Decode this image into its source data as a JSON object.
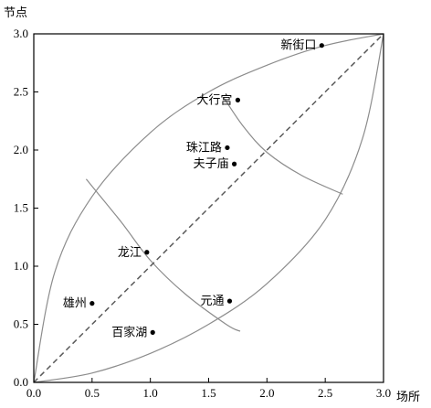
{
  "chart_data": {
    "type": "scatter",
    "xlabel": "场所",
    "ylabel": "节点",
    "xlim": [
      0,
      3
    ],
    "ylim": [
      0,
      3
    ],
    "xticks": [
      "0.0",
      "0.5",
      "1.0",
      "1.5",
      "2.0",
      "2.5",
      "3.0"
    ],
    "yticks": [
      "0.0",
      "0.5",
      "1.0",
      "1.5",
      "2.0",
      "2.5",
      "3.0"
    ],
    "diagonal_reference": true,
    "points": [
      {
        "label": "新街口",
        "x": 2.47,
        "y": 2.9
      },
      {
        "label": "大行宫",
        "x": 1.75,
        "y": 2.43
      },
      {
        "label": "珠江路",
        "x": 1.66,
        "y": 2.02
      },
      {
        "label": "夫子庙",
        "x": 1.72,
        "y": 1.88
      },
      {
        "label": "龙江",
        "x": 0.97,
        "y": 1.12
      },
      {
        "label": "雄州",
        "x": 0.5,
        "y": 0.68
      },
      {
        "label": "元通",
        "x": 1.68,
        "y": 0.7
      },
      {
        "label": "百家湖",
        "x": 1.02,
        "y": 0.43
      }
    ],
    "boundary_curves": [
      {
        "name": "upper",
        "points": [
          [
            0,
            0
          ],
          [
            0.18,
            0.95
          ],
          [
            0.5,
            1.6
          ],
          [
            1.0,
            2.15
          ],
          [
            1.5,
            2.5
          ],
          [
            2.0,
            2.73
          ],
          [
            2.5,
            2.9
          ],
          [
            3.0,
            3.0
          ]
        ]
      },
      {
        "name": "lower",
        "points": [
          [
            0,
            0
          ],
          [
            0.5,
            0.08
          ],
          [
            1.0,
            0.25
          ],
          [
            1.5,
            0.5
          ],
          [
            2.0,
            0.85
          ],
          [
            2.5,
            1.4
          ],
          [
            2.82,
            2.1
          ],
          [
            3.0,
            3.0
          ]
        ]
      },
      {
        "name": "cross-low",
        "points": [
          [
            0.45,
            1.75
          ],
          [
            0.75,
            1.38
          ],
          [
            1.0,
            1.05
          ],
          [
            1.3,
            0.76
          ],
          [
            1.65,
            0.5
          ],
          [
            1.77,
            0.44
          ]
        ]
      },
      {
        "name": "cross-high",
        "points": [
          [
            1.63,
            2.45
          ],
          [
            1.8,
            2.2
          ],
          [
            2.0,
            1.98
          ],
          [
            2.3,
            1.78
          ],
          [
            2.65,
            1.62
          ]
        ]
      }
    ],
    "colors": {
      "curve": "#8c8c8c",
      "diagonal": "#5a5a5a",
      "point": "#000000",
      "axis": "#000000"
    }
  }
}
